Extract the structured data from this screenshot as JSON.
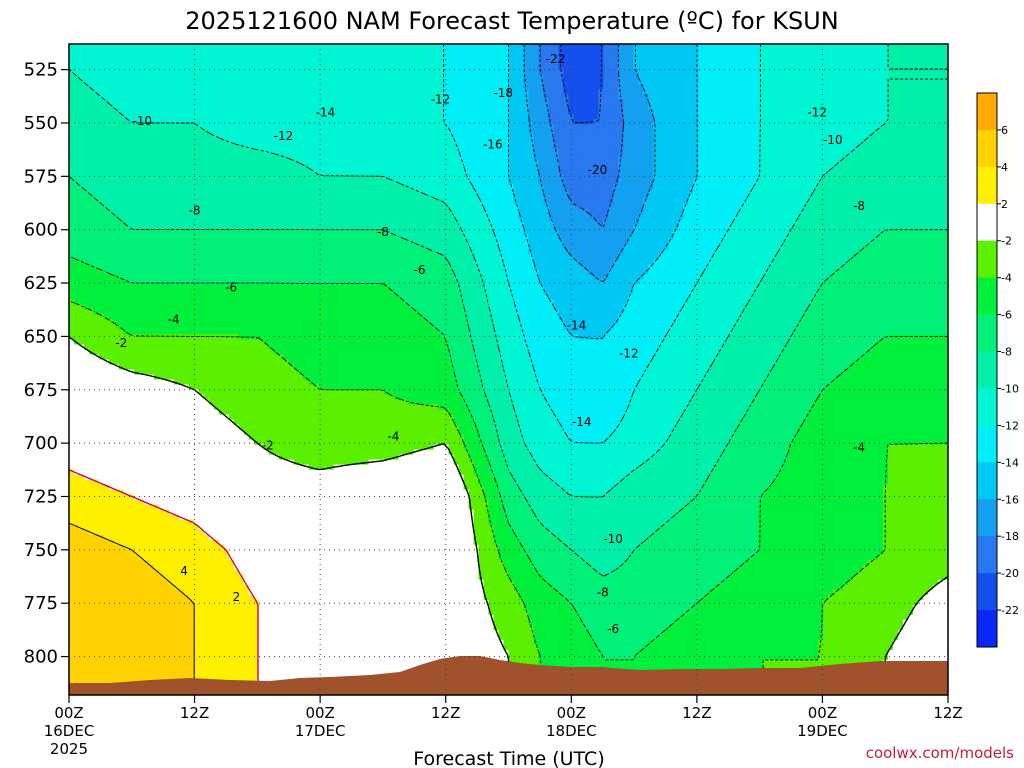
{
  "chart_data": {
    "type": "heatmap",
    "title": "2025121600 NAM Forecast Temperature (ºC) for KSUN",
    "xlabel": "Forecast Time (UTC)",
    "ylabel": "",
    "credit": "coolwx.com/models",
    "y_axis": {
      "ticks": [
        "525",
        "550",
        "575",
        "600",
        "625",
        "650",
        "675",
        "700",
        "725",
        "750",
        "775",
        "800"
      ],
      "range": [
        513,
        818
      ],
      "inverted": true
    },
    "x_axis": {
      "range_hours": [
        0,
        84
      ],
      "ticks": [
        {
          "hour": 0,
          "line1": "00Z",
          "line2": "16DEC",
          "line3": "2025"
        },
        {
          "hour": 12,
          "line1": "12Z",
          "line2": "",
          "line3": ""
        },
        {
          "hour": 24,
          "line1": "00Z",
          "line2": "17DEC",
          "line3": ""
        },
        {
          "hour": 36,
          "line1": "12Z",
          "line2": "",
          "line3": ""
        },
        {
          "hour": 48,
          "line1": "00Z",
          "line2": "18DEC",
          "line3": ""
        },
        {
          "hour": 60,
          "line1": "12Z",
          "line2": "",
          "line3": ""
        },
        {
          "hour": 72,
          "line1": "00Z",
          "line2": "19DEC",
          "line3": ""
        },
        {
          "hour": 84,
          "line1": "12Z",
          "line2": "",
          "line3": ""
        }
      ]
    },
    "grid": true,
    "colorbar": {
      "unit": "°C",
      "bands": [
        {
          "low": -24,
          "high": -22,
          "color": "#0a28f5"
        },
        {
          "low": -22,
          "high": -20,
          "color": "#1450f0"
        },
        {
          "low": -20,
          "high": -18,
          "color": "#2878f0"
        },
        {
          "low": -18,
          "high": -16,
          "color": "#14a0f0"
        },
        {
          "low": -16,
          "high": -14,
          "color": "#00c8f5"
        },
        {
          "low": -14,
          "high": -12,
          "color": "#00eef8"
        },
        {
          "low": -12,
          "high": -10,
          "color": "#00f5d2"
        },
        {
          "low": -10,
          "high": -8,
          "color": "#00f0aa"
        },
        {
          "low": -8,
          "high": -6,
          "color": "#00f078"
        },
        {
          "low": -6,
          "high": -4,
          "color": "#00f03c"
        },
        {
          "low": -4,
          "high": -2,
          "color": "#5af000"
        },
        {
          "low": -2,
          "high": 2,
          "color": "#ffffff"
        },
        {
          "low": 2,
          "high": 4,
          "color": "#fff000"
        },
        {
          "low": 4,
          "high": 6,
          "color": "#ffd200"
        },
        {
          "low": 6,
          "high": 8,
          "color": "#ffaa00"
        }
      ],
      "tick_labels": [
        "6",
        "4",
        "2",
        "-2",
        "-4",
        "-6",
        "-8",
        "-10",
        "-12",
        "-14",
        "-16",
        "-18",
        "-20",
        "-22"
      ]
    },
    "grid_hours": [
      0,
      6,
      12,
      18,
      24,
      30,
      36,
      42,
      45,
      48,
      51,
      54,
      60,
      66,
      72,
      78,
      84
    ],
    "grid_levels": [
      525,
      550,
      575,
      600,
      625,
      650,
      675,
      700,
      725,
      750,
      775,
      800
    ],
    "temperature": [
      [
        -10,
        -11,
        -11,
        -12,
        -12,
        -12,
        -12,
        -14,
        -18,
        -21,
        -20,
        -16,
        -14,
        -12,
        -11,
        -10,
        -10
      ],
      [
        -9,
        -10,
        -10,
        -11,
        -11,
        -12,
        -12,
        -14,
        -17,
        -20,
        -20,
        -17,
        -14,
        -12,
        -11,
        -10,
        -10
      ],
      [
        -8,
        -9,
        -9,
        -9,
        -10,
        -10,
        -11,
        -14,
        -16,
        -19,
        -19,
        -17,
        -14,
        -12,
        -10,
        -9,
        -9
      ],
      [
        -7,
        -8,
        -8,
        -8,
        -8,
        -8,
        -9,
        -13,
        -15,
        -17,
        -18,
        -16,
        -13,
        -11,
        -9,
        -8,
        -8
      ],
      [
        -5,
        -6,
        -6,
        -6,
        -6,
        -6,
        -7,
        -12,
        -14,
        -15,
        -16,
        -14,
        -12,
        -10,
        -8,
        -7,
        -7
      ],
      [
        -2,
        -4,
        -4,
        -4,
        -5,
        -5,
        -6,
        -11,
        -13,
        -14,
        -14,
        -13,
        -11,
        -9,
        -7,
        -6,
        -6
      ],
      [
        0,
        -1,
        -2,
        -3,
        -4,
        -4,
        -5,
        -10,
        -12,
        -13,
        -14,
        -12,
        -10,
        -8,
        -6,
        -5,
        -5
      ],
      [
        1,
        0,
        -1,
        -2,
        -3,
        -3,
        -2,
        -9,
        -11,
        -12,
        -12,
        -11,
        -9,
        -7,
        -5,
        -4,
        -4
      ],
      [
        3,
        2,
        1,
        -1,
        -1,
        0,
        1,
        -7,
        -9,
        -10,
        -10,
        -9,
        -8,
        -6,
        -5,
        -4,
        -3
      ],
      [
        5,
        4,
        3,
        1,
        0,
        0,
        1,
        -5,
        -7,
        -8,
        -9,
        -8,
        -7,
        -6,
        -5,
        -4,
        -3
      ],
      [
        6,
        5,
        4,
        2,
        1,
        0,
        0,
        -3,
        -5,
        -6,
        -7,
        -7,
        -6,
        -5,
        -4,
        -3,
        -1
      ],
      [
        6,
        5,
        4,
        2,
        1,
        0,
        0,
        -2,
        -4,
        -5,
        -6,
        -6,
        -5,
        -4,
        -4,
        -2,
        0
      ]
    ],
    "contour_labels": [
      {
        "text": "-22",
        "hour": 46.5,
        "level": 520
      },
      {
        "text": "-18",
        "hour": 41.5,
        "level": 536
      },
      {
        "text": "-12",
        "hour": 35.5,
        "level": 539
      },
      {
        "text": "-14",
        "hour": 24.5,
        "level": 545
      },
      {
        "text": "-10",
        "hour": 7,
        "level": 549
      },
      {
        "text": "-12",
        "hour": 20.5,
        "level": 556
      },
      {
        "text": "-16",
        "hour": 40.5,
        "level": 560
      },
      {
        "text": "-20",
        "hour": 50.5,
        "level": 572
      },
      {
        "text": "-12",
        "hour": 71.5,
        "level": 545
      },
      {
        "text": "-10",
        "hour": 73,
        "level": 558
      },
      {
        "text": "-8",
        "hour": 12,
        "level": 591
      },
      {
        "text": "-8",
        "hour": 30,
        "level": 601
      },
      {
        "text": "-8",
        "hour": 75.5,
        "level": 589
      },
      {
        "text": "-6",
        "hour": 15.5,
        "level": 627
      },
      {
        "text": "-6",
        "hour": 33.5,
        "level": 619
      },
      {
        "text": "-4",
        "hour": 10,
        "level": 642
      },
      {
        "text": "-2",
        "hour": 5,
        "level": 653
      },
      {
        "text": "-14",
        "hour": 48.5,
        "level": 645
      },
      {
        "text": "-12",
        "hour": 53.5,
        "level": 658
      },
      {
        "text": "-14",
        "hour": 49,
        "level": 690
      },
      {
        "text": "-2",
        "hour": 19,
        "level": 701
      },
      {
        "text": "-4",
        "hour": 31,
        "level": 697
      },
      {
        "text": "-4",
        "hour": 75.5,
        "level": 702
      },
      {
        "text": "-10",
        "hour": 52,
        "level": 745
      },
      {
        "text": "-8",
        "hour": 51,
        "level": 770
      },
      {
        "text": "-6",
        "hour": 52,
        "level": 787
      },
      {
        "text": "4",
        "hour": 11,
        "level": 760
      },
      {
        "text": "2",
        "hour": 16,
        "level": 772
      }
    ]
  }
}
